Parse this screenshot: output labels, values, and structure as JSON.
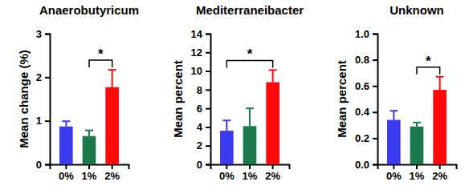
{
  "chart_data": [
    {
      "type": "bar",
      "title": "Anaerobutyricum",
      "ylabel": "Mean change (%)",
      "categories": [
        "0%",
        "1%",
        "2%"
      ],
      "values": [
        0.87,
        0.65,
        1.77
      ],
      "errors": [
        0.12,
        0.13,
        0.4
      ],
      "colors": [
        "#3a3aee",
        "#1b7a4c",
        "#ff0a0a"
      ],
      "ylim": [
        0,
        3
      ],
      "yticks": [
        0,
        1,
        2,
        3
      ],
      "annotations": [
        {
          "text": "*",
          "between": [
            "1%",
            "2%"
          ]
        }
      ]
    },
    {
      "type": "bar",
      "title": "Mediterraneibacter",
      "ylabel": "Mean percent",
      "categories": [
        "0%",
        "1%",
        "2%"
      ],
      "values": [
        3.6,
        4.1,
        8.8
      ],
      "errors": [
        1.1,
        1.9,
        1.3
      ],
      "colors": [
        "#3a3aee",
        "#1b7a4c",
        "#ff0a0a"
      ],
      "ylim": [
        0,
        14
      ],
      "yticks": [
        0,
        2,
        4,
        6,
        8,
        10,
        12,
        14
      ],
      "annotations": [
        {
          "text": "*",
          "between": [
            "0%",
            "2%"
          ]
        }
      ]
    },
    {
      "type": "bar",
      "title": "Unknown",
      "ylabel": "Mean percent",
      "categories": [
        "0%",
        "1%",
        "2%"
      ],
      "values": [
        0.34,
        0.29,
        0.57
      ],
      "errors": [
        0.07,
        0.03,
        0.1
      ],
      "colors": [
        "#3a3aee",
        "#1b7a4c",
        "#ff0a0a"
      ],
      "ylim": [
        0,
        1
      ],
      "yticks": [
        {
          "value": 0,
          "label": "0.0"
        },
        0.2,
        0.4,
        0.6,
        0.8,
        {
          "value": 1,
          "label": "1.0"
        }
      ],
      "annotations": [
        {
          "text": "*",
          "between": [
            "1%",
            "2%"
          ]
        }
      ]
    }
  ]
}
